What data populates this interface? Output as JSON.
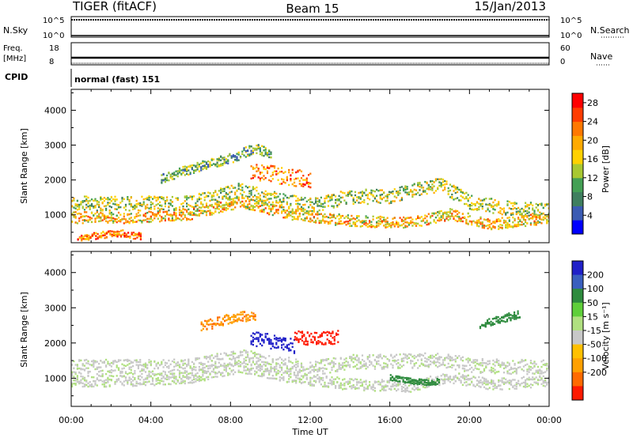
{
  "header": {
    "radar": "TIGER (fitACF)",
    "beam": "Beam 15",
    "date": "15/Jan/2013"
  },
  "panels": {
    "nsky": {
      "label": "N.Sky",
      "ticks": [
        "10^5",
        "10^0"
      ]
    },
    "nsearch": {
      "label": "N.Search",
      "ticks": [
        "10^5",
        "10^0"
      ]
    },
    "freq": {
      "label_line1": "Freq.",
      "label_line2": "[MHz]",
      "ticks": [
        "18",
        "8"
      ]
    },
    "nave": {
      "label": "Nave",
      "ticks": [
        "60",
        "0"
      ]
    },
    "cpid": {
      "label": "CPID",
      "value": "normal (fast) 151"
    }
  },
  "colors": {
    "power": [
      "#0000ff",
      "#3b5bb3",
      "#3f7f5f",
      "#44a055",
      "#a8c832",
      "#ffd100",
      "#ffaa00",
      "#ff7800",
      "#ff3c00",
      "#ff0000"
    ],
    "velocity": [
      "#2020c8",
      "#3a5fbf",
      "#2e8b3e",
      "#5fcf3a",
      "#b0e080",
      "#c8c8c8",
      "#ffc000",
      "#ffa000",
      "#ff6a00",
      "#ff1a00"
    ]
  },
  "chart_data": [
    {
      "type": "heatmap",
      "title": "",
      "xlabel": "Time UT",
      "ylabel": "Slant Range [km]",
      "x_ticks": [
        "00:00",
        "04:00",
        "08:00",
        "12:00",
        "16:00",
        "20:00",
        "00:00"
      ],
      "y_ticks": [
        "1000",
        "2000",
        "3000",
        "4000"
      ],
      "ylim": [
        200,
        4600
      ],
      "colorbar_label": "Power [dB]",
      "colorbar_ticks": [
        "28",
        "24",
        "20",
        "16",
        "12",
        "8",
        "4"
      ],
      "bands": [
        {
          "time_h": [
            0,
            3,
            6,
            8.5,
            10,
            12,
            14,
            16,
            18.5,
            20,
            22,
            24
          ],
          "range_km": [
            1300,
            1300,
            1320,
            1700,
            1450,
            1250,
            1500,
            1500,
            1850,
            1350,
            1150,
            1100
          ],
          "width_km": 260,
          "power_db": 14
        },
        {
          "time_h": [
            0,
            3,
            6,
            8.5,
            11,
            14,
            17,
            19,
            21,
            24
          ],
          "range_km": [
            900,
            900,
            1000,
            1350,
            1000,
            800,
            750,
            1000,
            700,
            900
          ],
          "width_km": 200,
          "power_db": 18
        },
        {
          "time_h": [
            0.3,
            1.5,
            2.5,
            3.5
          ],
          "range_km": [
            300,
            400,
            450,
            350
          ],
          "width_km": 120,
          "power_db": 22
        },
        {
          "time_h": [
            4.5,
            6,
            8,
            9.2,
            10
          ],
          "range_km": [
            2000,
            2300,
            2600,
            2900,
            2700
          ],
          "width_km": 180,
          "power_db": 10
        },
        {
          "time_h": [
            9,
            10,
            11,
            12
          ],
          "range_km": [
            2200,
            2150,
            2050,
            2000
          ],
          "width_km": 300,
          "power_db": 22
        }
      ]
    },
    {
      "type": "heatmap",
      "title": "",
      "xlabel": "Time UT",
      "ylabel": "Slant Range [km]",
      "x_ticks": [
        "00:00",
        "04:00",
        "08:00",
        "12:00",
        "16:00",
        "20:00",
        "00:00"
      ],
      "y_ticks": [
        "1000",
        "2000",
        "3000",
        "4000"
      ],
      "ylim": [
        200,
        4600
      ],
      "colorbar_label": "Velocity [m s⁻¹]",
      "colorbar_ticks": [
        "200",
        "100",
        "50",
        "15",
        "-15",
        "-50",
        "-100",
        "-200"
      ],
      "bands": [
        {
          "time_h": [
            0,
            3,
            6,
            8.5,
            10,
            12,
            14,
            16,
            18.5,
            20,
            22,
            24
          ],
          "range_km": [
            1300,
            1300,
            1320,
            1600,
            1450,
            1250,
            1450,
            1450,
            1500,
            1350,
            1300,
            1300
          ],
          "width_km": 260,
          "velocity_ms": 0
        },
        {
          "time_h": [
            0,
            3,
            6,
            8.5,
            11,
            14,
            17,
            19,
            21,
            24
          ],
          "range_km": [
            900,
            900,
            1000,
            1300,
            1000,
            800,
            750,
            1000,
            800,
            900
          ],
          "width_km": 200,
          "velocity_ms": 0
        },
        {
          "time_h": [
            9,
            9.8,
            10.6,
            11.2
          ],
          "range_km": [
            2100,
            2050,
            1950,
            1900
          ],
          "width_km": 260,
          "velocity_ms": 200
        },
        {
          "time_h": [
            11.2,
            11.8,
            12.5,
            13.4
          ],
          "range_km": [
            2150,
            2100,
            2100,
            2150
          ],
          "width_km": 230,
          "velocity_ms": -200
        },
        {
          "time_h": [
            6.5,
            7.5,
            8.5,
            9.2
          ],
          "range_km": [
            2450,
            2600,
            2750,
            2700
          ],
          "width_km": 180,
          "velocity_ms": -70
        },
        {
          "time_h": [
            16,
            17,
            18,
            18.5
          ],
          "range_km": [
            1000,
            900,
            850,
            900
          ],
          "width_km": 100,
          "velocity_ms": 60
        },
        {
          "time_h": [
            20.5,
            21.5,
            22.5
          ],
          "range_km": [
            2500,
            2650,
            2800
          ],
          "width_km": 140,
          "velocity_ms": 60
        }
      ]
    }
  ]
}
